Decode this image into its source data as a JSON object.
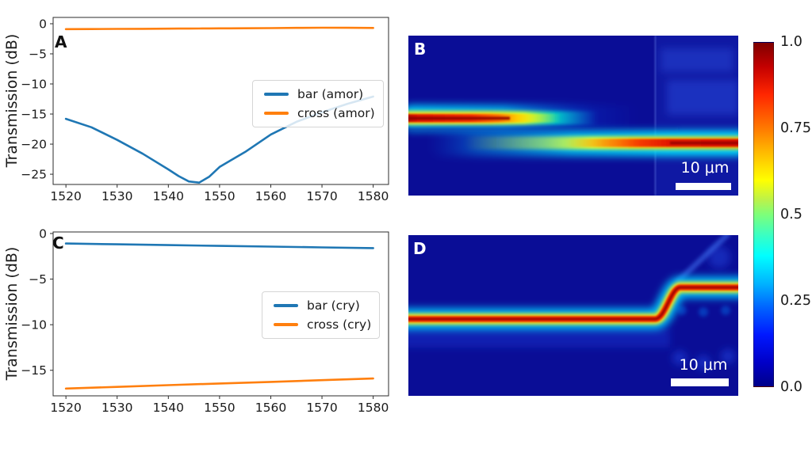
{
  "figure": {
    "background": "#ffffff",
    "panels": {
      "A": {
        "label": "A"
      },
      "B": {
        "label": "B",
        "scalebar_label": "10 μm"
      },
      "C": {
        "label": "C"
      },
      "D": {
        "label": "D",
        "scalebar_label": "10 μm"
      }
    },
    "colorbar": {
      "colormap": "jet",
      "ticks": [
        "1.0",
        "0.75",
        "0.5",
        "0.25",
        "0.0"
      ]
    }
  },
  "chart_data": [
    {
      "id": "A",
      "type": "line",
      "title": "",
      "xlabel": "",
      "ylabel": "Transmission (dB)",
      "xlim": [
        1517.5,
        1583
      ],
      "ylim": [
        -26.7,
        1.05
      ],
      "xticks": [
        1520,
        1530,
        1540,
        1550,
        1560,
        1570,
        1580
      ],
      "yticks": [
        0,
        -5,
        -10,
        -15,
        -20,
        -25
      ],
      "grid": false,
      "legend_position": "center right",
      "x": [
        1520,
        1525,
        1530,
        1535,
        1540,
        1542,
        1544,
        1546,
        1548,
        1550,
        1552,
        1555,
        1560,
        1565,
        1570,
        1575,
        1580
      ],
      "series": [
        {
          "name": "bar (amor)",
          "color": "#1f77b4",
          "values": [
            -15.8,
            -17.2,
            -19.3,
            -21.6,
            -24.2,
            -25.3,
            -26.2,
            -26.4,
            -25.4,
            -23.8,
            -22.8,
            -21.3,
            -18.4,
            -16.3,
            -14.7,
            -13.3,
            -12.1
          ]
        },
        {
          "name": "cross (amor)",
          "color": "#ff7f0e",
          "values": [
            -0.9,
            -0.88,
            -0.86,
            -0.84,
            -0.82,
            -0.81,
            -0.8,
            -0.79,
            -0.78,
            -0.77,
            -0.76,
            -0.75,
            -0.72,
            -0.69,
            -0.66,
            -0.67,
            -0.7
          ]
        }
      ]
    },
    {
      "id": "B",
      "type": "heatmap",
      "colormap": "jet",
      "value_range": [
        0.0,
        1.0
      ],
      "scalebar": "10 μm",
      "description": "Simulated optical field (amorphous): light enters the upper waveguide at left and gradually couples into the lower waveguide, exiting at full intensity on the right (cross port)."
    },
    {
      "id": "C",
      "type": "line",
      "title": "",
      "xlabel": "",
      "ylabel": "Transmission (dB)",
      "xlim": [
        1517.5,
        1583
      ],
      "ylim": [
        -17.8,
        0.17
      ],
      "xticks": [
        1520,
        1530,
        1540,
        1550,
        1560,
        1570,
        1580
      ],
      "yticks": [
        0,
        -5,
        -10,
        -15
      ],
      "grid": false,
      "legend_position": "center right",
      "x": [
        1520,
        1530,
        1540,
        1550,
        1560,
        1570,
        1580
      ],
      "series": [
        {
          "name": "bar (cry)",
          "color": "#1f77b4",
          "values": [
            -1.1,
            -1.18,
            -1.27,
            -1.36,
            -1.44,
            -1.52,
            -1.6
          ]
        },
        {
          "name": "cross (cry)",
          "color": "#ff7f0e",
          "values": [
            -17.0,
            -16.82,
            -16.63,
            -16.45,
            -16.27,
            -16.08,
            -15.9
          ]
        }
      ]
    },
    {
      "id": "D",
      "type": "heatmap",
      "colormap": "jet",
      "value_range": [
        0.0,
        1.0
      ],
      "scalebar": "10 μm",
      "description": "Simulated optical field (crystalline): light remains in the input waveguide across the coupler, then shifts upward through an S-bend into the through (bar) port at right."
    }
  ]
}
